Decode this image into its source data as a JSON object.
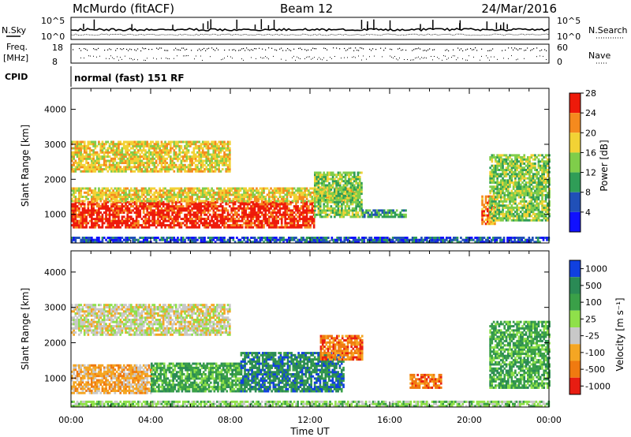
{
  "header": {
    "station": "McMurdo (fitACF)",
    "beam": "Beam 12",
    "date": "24/Mar/2016"
  },
  "noise_panel": {
    "left_label": "N.Sky",
    "right_label": "N.Search",
    "left_ticks": [
      "10^5",
      "10^0"
    ],
    "right_ticks": [
      "10^5",
      "10^0"
    ]
  },
  "freq_panel": {
    "left_label_1": "Freq.",
    "left_label_2": "[MHz]",
    "right_label": "Nave",
    "left_ticks": [
      "18",
      "8"
    ],
    "right_ticks": [
      "60",
      "0"
    ]
  },
  "cpid": {
    "label": "CPID",
    "value": "normal (fast) 151 RF"
  },
  "chart_data": [
    {
      "type": "heatmap",
      "name": "power",
      "ylabel": "Slant Range [km]",
      "xlabel": "",
      "ylim": [
        180,
        4600
      ],
      "yticks": [
        "1000",
        "2000",
        "3000",
        "4000"
      ],
      "colorbar": {
        "label": "Power [dB]",
        "ticks": [
          "4",
          "8",
          "12",
          "16",
          "20",
          "24",
          "28"
        ],
        "colors": [
          "#1010ff",
          "#2050b8",
          "#2f9d57",
          "#7fcd4a",
          "#f2d235",
          "#f58a1e",
          "#ee1a0a"
        ]
      },
      "bands": [
        {
          "t0": 0.0,
          "t1": 12.2,
          "r0": 600,
          "r1": 1350,
          "level": 6
        },
        {
          "t0": 0.0,
          "t1": 14.3,
          "r0": 1350,
          "r1": 1750,
          "level": 4
        },
        {
          "t0": 0.0,
          "t1": 8.0,
          "r0": 2200,
          "r1": 3050,
          "level": 4
        },
        {
          "t0": 12.2,
          "t1": 14.6,
          "r0": 900,
          "r1": 2200,
          "level": 3
        },
        {
          "t0": 14.6,
          "t1": 16.8,
          "r0": 900,
          "r1": 1100,
          "level": 2
        },
        {
          "t0": 20.6,
          "t1": 21.3,
          "r0": 700,
          "r1": 1500,
          "level": 5
        },
        {
          "t0": 21.0,
          "t1": 24.0,
          "r0": 800,
          "r1": 2700,
          "level": 3
        },
        {
          "t0": 0.0,
          "t1": 24.0,
          "r0": 180,
          "r1": 320,
          "level": 1
        }
      ]
    },
    {
      "type": "heatmap",
      "name": "velocity",
      "ylabel": "Slant Range [km]",
      "xlabel": "Time UT",
      "xticks": [
        "00:00",
        "04:00",
        "08:00",
        "12:00",
        "16:00",
        "20:00",
        "00:00"
      ],
      "ylim": [
        180,
        4600
      ],
      "yticks": [
        "1000",
        "2000",
        "3000",
        "4000"
      ],
      "colorbar": {
        "label": "Velocity [m s⁻¹]",
        "ticks": [
          "1000",
          "500",
          "100",
          "25",
          "-25",
          "-100",
          "-500",
          "-1000"
        ],
        "colors": [
          "#1040e0",
          "#2a8a55",
          "#3aa048",
          "#8fe04a",
          "#c8c8c8",
          "#f5a623",
          "#f07a10",
          "#e81d12"
        ]
      },
      "bands": [
        {
          "t0": 0.0,
          "t1": 4.0,
          "r0": 550,
          "r1": 1350,
          "level": 5
        },
        {
          "t0": 4.0,
          "t1": 8.5,
          "r0": 600,
          "r1": 1400,
          "level": 2
        },
        {
          "t0": 8.5,
          "t1": 13.7,
          "r0": 600,
          "r1": 1700,
          "level": 1
        },
        {
          "t0": 0.0,
          "t1": 8.0,
          "r0": 2200,
          "r1": 3050,
          "level": 4
        },
        {
          "t0": 12.5,
          "t1": 14.6,
          "r0": 1500,
          "r1": 2200,
          "level": 6
        },
        {
          "t0": 17.0,
          "t1": 18.6,
          "r0": 700,
          "r1": 1100,
          "level": 6
        },
        {
          "t0": 21.0,
          "t1": 24.0,
          "r0": 700,
          "r1": 2600,
          "level": 2
        },
        {
          "t0": 0.0,
          "t1": 24.0,
          "r0": 180,
          "r1": 320,
          "level": 3
        }
      ]
    }
  ]
}
